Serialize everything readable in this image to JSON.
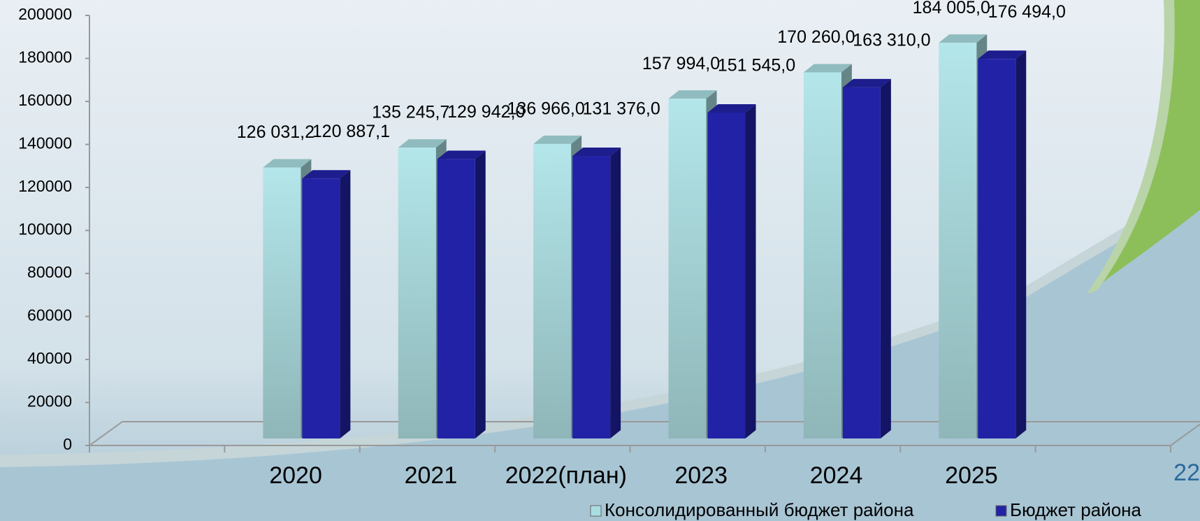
{
  "chart_data": {
    "type": "bar",
    "categories": [
      null,
      "2020",
      "2021",
      "2022(план)",
      "2023",
      "2024",
      "2025",
      null
    ],
    "series": [
      {
        "name": "Консолидированный бюджет района",
        "color": "#a9dde1",
        "values": [
          null,
          126031.2,
          135245.7,
          136966.0,
          157994.0,
          170260.0,
          184005.0,
          null
        ],
        "value_labels": [
          null,
          "126 031,2",
          "135 245,7",
          "136 966,0",
          "157 994,0",
          "170 260,0",
          "184 005,0",
          null
        ]
      },
      {
        "name": "Бюджет района",
        "color": "#2222a6",
        "values": [
          null,
          120887.1,
          129942.0,
          131376.0,
          151545.0,
          163310.0,
          176494.0,
          null
        ],
        "value_labels": [
          null,
          "120 887,1",
          "129 942,0",
          "131 376,0",
          "151 545,0",
          "163 310,0",
          "176 494,0",
          null
        ]
      }
    ],
    "ylim": [
      0,
      200000
    ],
    "yticks": [
      0,
      20000,
      40000,
      60000,
      80000,
      100000,
      120000,
      140000,
      160000,
      180000,
      200000
    ],
    "legend": "bottom-right",
    "page_number": "22"
  }
}
